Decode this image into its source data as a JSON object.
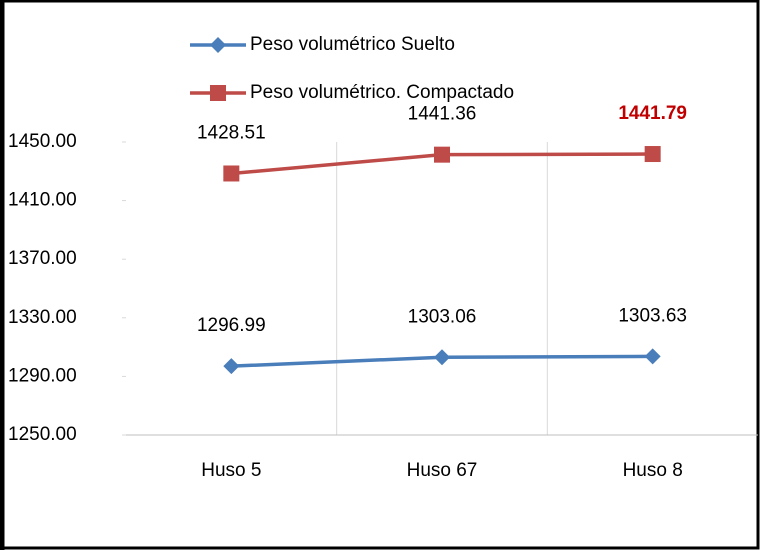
{
  "chart_data": {
    "type": "line",
    "categories": [
      "Huso 5",
      "Huso 67",
      "Huso 8"
    ],
    "series": [
      {
        "name": "Peso volumétrico Suelto",
        "color": "#4a7ebb",
        "marker": "diamond",
        "values": [
          1296.99,
          1303.06,
          1303.63
        ]
      },
      {
        "name": "Peso volumétrico. Compactado",
        "color": "#be4b48",
        "marker": "square",
        "values": [
          1428.51,
          1441.36,
          1441.79
        ]
      }
    ],
    "ylim": [
      1250,
      1450
    ],
    "yticks": [
      {
        "value": 1250,
        "label": "1250.00"
      },
      {
        "value": 1290,
        "label": "1290.00"
      },
      {
        "value": 1330,
        "label": "1330.00"
      },
      {
        "value": 1370,
        "label": "1370.00"
      },
      {
        "value": 1410,
        "label": "1410.00"
      },
      {
        "value": 1450,
        "label": "1450.00"
      }
    ],
    "legend": "top",
    "highlight": {
      "series": 1,
      "index": 2,
      "color": "#c00000"
    }
  }
}
